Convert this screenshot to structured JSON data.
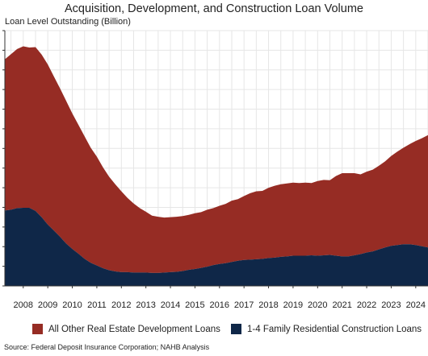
{
  "title": "Acquisition, Development, and Construction Loan Volume",
  "ylabel": "Loan Level Outstanding (Billion)",
  "source": "Source: Federal Deposit Insurance Corporation; NAHB Analysis",
  "colors": {
    "other": "#962c24",
    "family": "#0f2748",
    "grid": "#e6e6e6"
  },
  "legend": [
    {
      "label": "All Other Real Estate Development Loans",
      "color": "#962c24"
    },
    {
      "label": "1-4 Family Residential Construction Loans",
      "color": "#0f2748"
    }
  ],
  "chart_data": {
    "type": "area",
    "stacked": true,
    "x_ticks": [
      "2008",
      "2009",
      "2010",
      "2011",
      "2012",
      "2013",
      "2014",
      "2015",
      "2016",
      "2017",
      "2018",
      "2019",
      "2020",
      "2021",
      "2022",
      "2023",
      "2024"
    ],
    "xlim": [
      2007.25,
      2024.5
    ],
    "ylim": [
      0,
      650
    ],
    "y_ticklabels_visible": false,
    "grid": true,
    "legend_position": "bottom",
    "x": [
      2007.25,
      2007.5,
      2007.75,
      2008.0,
      2008.25,
      2008.5,
      2008.75,
      2009.0,
      2009.25,
      2009.5,
      2009.75,
      2010.0,
      2010.25,
      2010.5,
      2010.75,
      2011.0,
      2011.25,
      2011.5,
      2011.75,
      2012.0,
      2012.25,
      2012.5,
      2012.75,
      2013.0,
      2013.25,
      2013.5,
      2013.75,
      2014.0,
      2014.25,
      2014.5,
      2014.75,
      2015.0,
      2015.25,
      2015.5,
      2015.75,
      2016.0,
      2016.25,
      2016.5,
      2016.75,
      2017.0,
      2017.25,
      2017.5,
      2017.75,
      2018.0,
      2018.25,
      2018.5,
      2018.75,
      2019.0,
      2019.25,
      2019.5,
      2019.75,
      2020.0,
      2020.25,
      2020.5,
      2020.75,
      2021.0,
      2021.25,
      2021.5,
      2021.75,
      2022.0,
      2022.25,
      2022.5,
      2022.75,
      2023.0,
      2023.25,
      2023.5,
      2023.75,
      2024.0,
      2024.25,
      2024.5
    ],
    "series": [
      {
        "name": "1-4 Family Residential Construction Loans",
        "values": [
          192,
          194,
          198,
          199,
          199,
          191,
          175,
          156,
          141,
          125,
          108,
          94,
          82,
          69,
          59,
          52,
          45,
          40,
          37,
          35,
          35,
          34,
          34,
          34,
          33,
          33,
          34,
          35,
          36,
          38,
          41,
          43,
          46,
          49,
          53,
          56,
          58,
          61,
          64,
          66,
          67,
          68,
          69,
          71,
          72,
          74,
          75,
          77,
          77,
          77,
          78,
          77,
          78,
          79,
          77,
          75,
          75,
          78,
          81,
          85,
          88,
          93,
          98,
          102,
          104,
          106,
          106,
          104,
          101,
          98
        ]
      },
      {
        "name": "All Other Real Estate Development Loans",
        "values": [
          385,
          396,
          405,
          411,
          408,
          417,
          414,
          408,
          392,
          378,
          363,
          345,
          328,
          312,
          293,
          277,
          257,
          238,
          222,
          206,
          189,
          176,
          164,
          155,
          146,
          143,
          140,
          140,
          140,
          140,
          140,
          142,
          142,
          145,
          145,
          148,
          151,
          156,
          157,
          163,
          169,
          173,
          173,
          179,
          183,
          185,
          186,
          186,
          185,
          186,
          184,
          190,
          192,
          190,
          203,
          212,
          212,
          209,
          203,
          206,
          208,
          213,
          219,
          229,
          238,
          246,
          255,
          265,
          275,
          286
        ]
      }
    ]
  }
}
